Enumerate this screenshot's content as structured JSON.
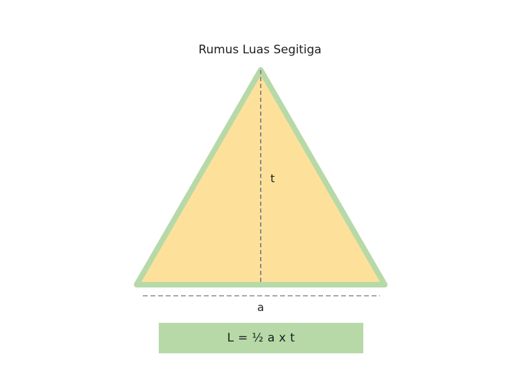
{
  "title": "Rumus Luas Segitiga",
  "labels": {
    "height": "t",
    "base": "a"
  },
  "formula": "L = ½ a x t",
  "colors": {
    "triangle_fill": "#fde19a",
    "triangle_stroke": "#b7d9a8",
    "dashed_line": "#8a8a8a",
    "formula_bg": "#b7d9a8",
    "text": "#1d1d1d"
  }
}
